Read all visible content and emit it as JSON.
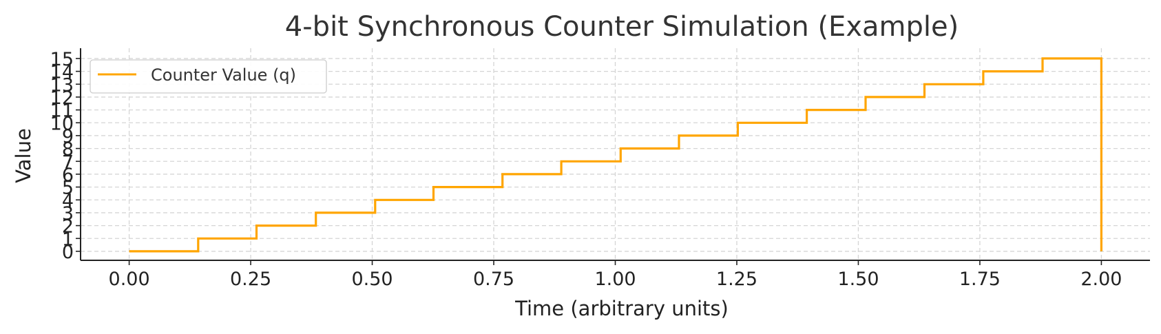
{
  "chart_data": {
    "type": "line",
    "step": "post",
    "title": "4-bit Synchronous Counter Simulation (Example)",
    "xlabel": "Time (arbitrary units)",
    "ylabel": "Value",
    "xlim": [
      -0.1,
      2.1
    ],
    "ylim": [
      -0.7,
      15.8
    ],
    "xticks": [
      0,
      0.25,
      0.5,
      0.75,
      1.0,
      1.25,
      1.5,
      1.75,
      2.0
    ],
    "xtick_labels": [
      "0.00",
      "0.25",
      "0.50",
      "0.75",
      "1.00",
      "1.25",
      "1.50",
      "1.75",
      "2.00"
    ],
    "yticks": [
      0,
      1,
      2,
      3,
      4,
      5,
      6,
      7,
      8,
      9,
      10,
      11,
      12,
      13,
      14,
      15
    ],
    "ytick_labels": [
      "0",
      "1",
      "2",
      "3",
      "4",
      "5",
      "6",
      "7",
      "8",
      "9",
      "10",
      "11",
      "12",
      "13",
      "14",
      "15"
    ],
    "grid": true,
    "legend": "top-left",
    "series": [
      {
        "name": "Counter Value (q)",
        "color": "#FFA500",
        "x": [
          0.0,
          0.142,
          0.262,
          0.384,
          0.506,
          0.626,
          0.768,
          0.889,
          1.011,
          1.131,
          1.252,
          1.394,
          1.515,
          1.636,
          1.757,
          1.879,
          2.0
        ],
        "y": [
          0,
          1,
          2,
          3,
          4,
          5,
          6,
          7,
          8,
          9,
          10,
          11,
          12,
          13,
          14,
          15,
          0
        ]
      }
    ]
  }
}
